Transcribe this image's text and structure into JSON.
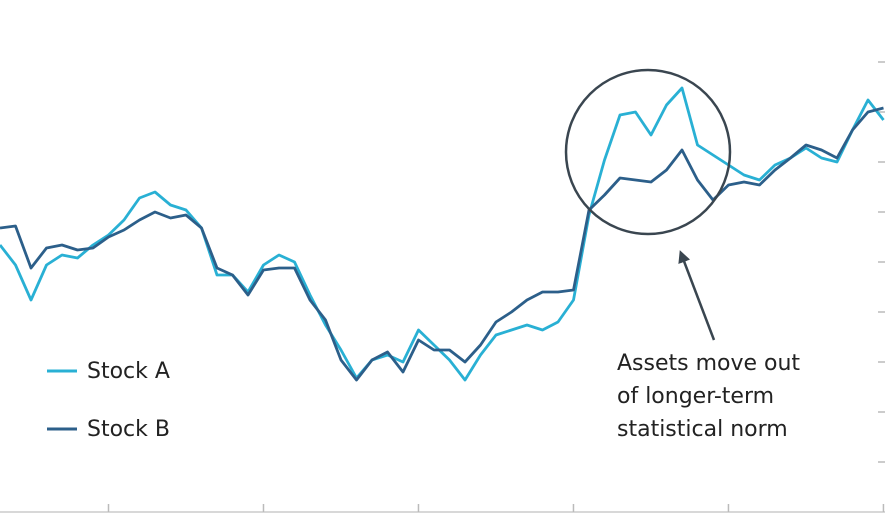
{
  "chart_data": {
    "type": "line",
    "x": [
      0.3,
      0.4,
      0.5,
      0.6,
      0.7,
      0.8,
      0.9,
      1.0,
      1.1,
      1.2,
      1.3,
      1.4,
      1.5,
      1.6,
      1.7,
      1.8,
      1.9,
      2.0,
      2.1,
      2.2,
      2.3,
      2.4,
      2.5,
      2.6,
      2.7,
      2.8,
      2.9,
      3.0,
      3.1,
      3.2,
      3.3,
      3.4,
      3.5,
      3.6,
      3.7,
      3.8,
      3.9,
      4.0,
      4.1,
      4.2,
      4.3,
      4.4,
      4.5,
      4.6,
      4.7,
      4.8,
      4.9,
      5.0,
      5.1,
      5.2,
      5.3,
      5.4,
      5.5,
      5.6,
      5.7,
      5.8,
      5.9,
      6.0
    ],
    "series": [
      {
        "name": "Stock A",
        "color": "#29b0d4",
        "values": [
          5.34,
          4.94,
          4.24,
          4.94,
          5.14,
          5.08,
          5.34,
          5.54,
          5.84,
          6.28,
          6.4,
          6.14,
          6.04,
          5.68,
          4.74,
          4.74,
          4.4,
          4.94,
          5.14,
          5.0,
          4.34,
          3.74,
          3.24,
          2.68,
          3.04,
          3.14,
          3.0,
          3.64,
          3.34,
          3.04,
          2.64,
          3.14,
          3.54,
          3.64,
          3.74,
          3.64,
          3.8,
          4.24,
          5.94,
          7.04,
          7.94,
          8.0,
          7.54,
          8.14,
          8.48,
          7.34,
          7.14,
          6.94,
          6.74,
          6.64,
          6.94,
          7.08,
          7.28,
          7.08,
          7.0,
          7.64,
          8.24,
          7.84
        ]
      },
      {
        "name": "Stock B",
        "color": "#2c5f8a",
        "values": [
          5.68,
          5.72,
          4.88,
          5.28,
          5.34,
          5.24,
          5.28,
          5.5,
          5.64,
          5.84,
          6.0,
          5.88,
          5.94,
          5.68,
          4.88,
          4.74,
          4.34,
          4.84,
          4.88,
          4.88,
          4.24,
          3.84,
          3.04,
          2.64,
          3.04,
          3.2,
          2.8,
          3.44,
          3.24,
          3.24,
          3.0,
          3.34,
          3.8,
          4.0,
          4.24,
          4.4,
          4.4,
          4.44,
          6.04,
          6.34,
          6.68,
          6.64,
          6.6,
          6.84,
          7.24,
          6.64,
          6.24,
          6.54,
          6.6,
          6.54,
          6.84,
          7.08,
          7.34,
          7.24,
          7.08,
          7.64,
          8.0,
          8.08
        ]
      }
    ],
    "annotation": [
      "Assets move out",
      "of longer-term",
      "statistical norm"
    ],
    "xlim": [
      0.3,
      6.01
    ],
    "xticks": [
      1,
      2,
      3,
      4,
      5,
      6
    ],
    "ylim": [
      0,
      10
    ],
    "yticks": [
      1,
      2,
      3,
      4,
      5,
      6,
      7,
      8,
      9
    ],
    "grid": false,
    "legend": "lower left"
  }
}
